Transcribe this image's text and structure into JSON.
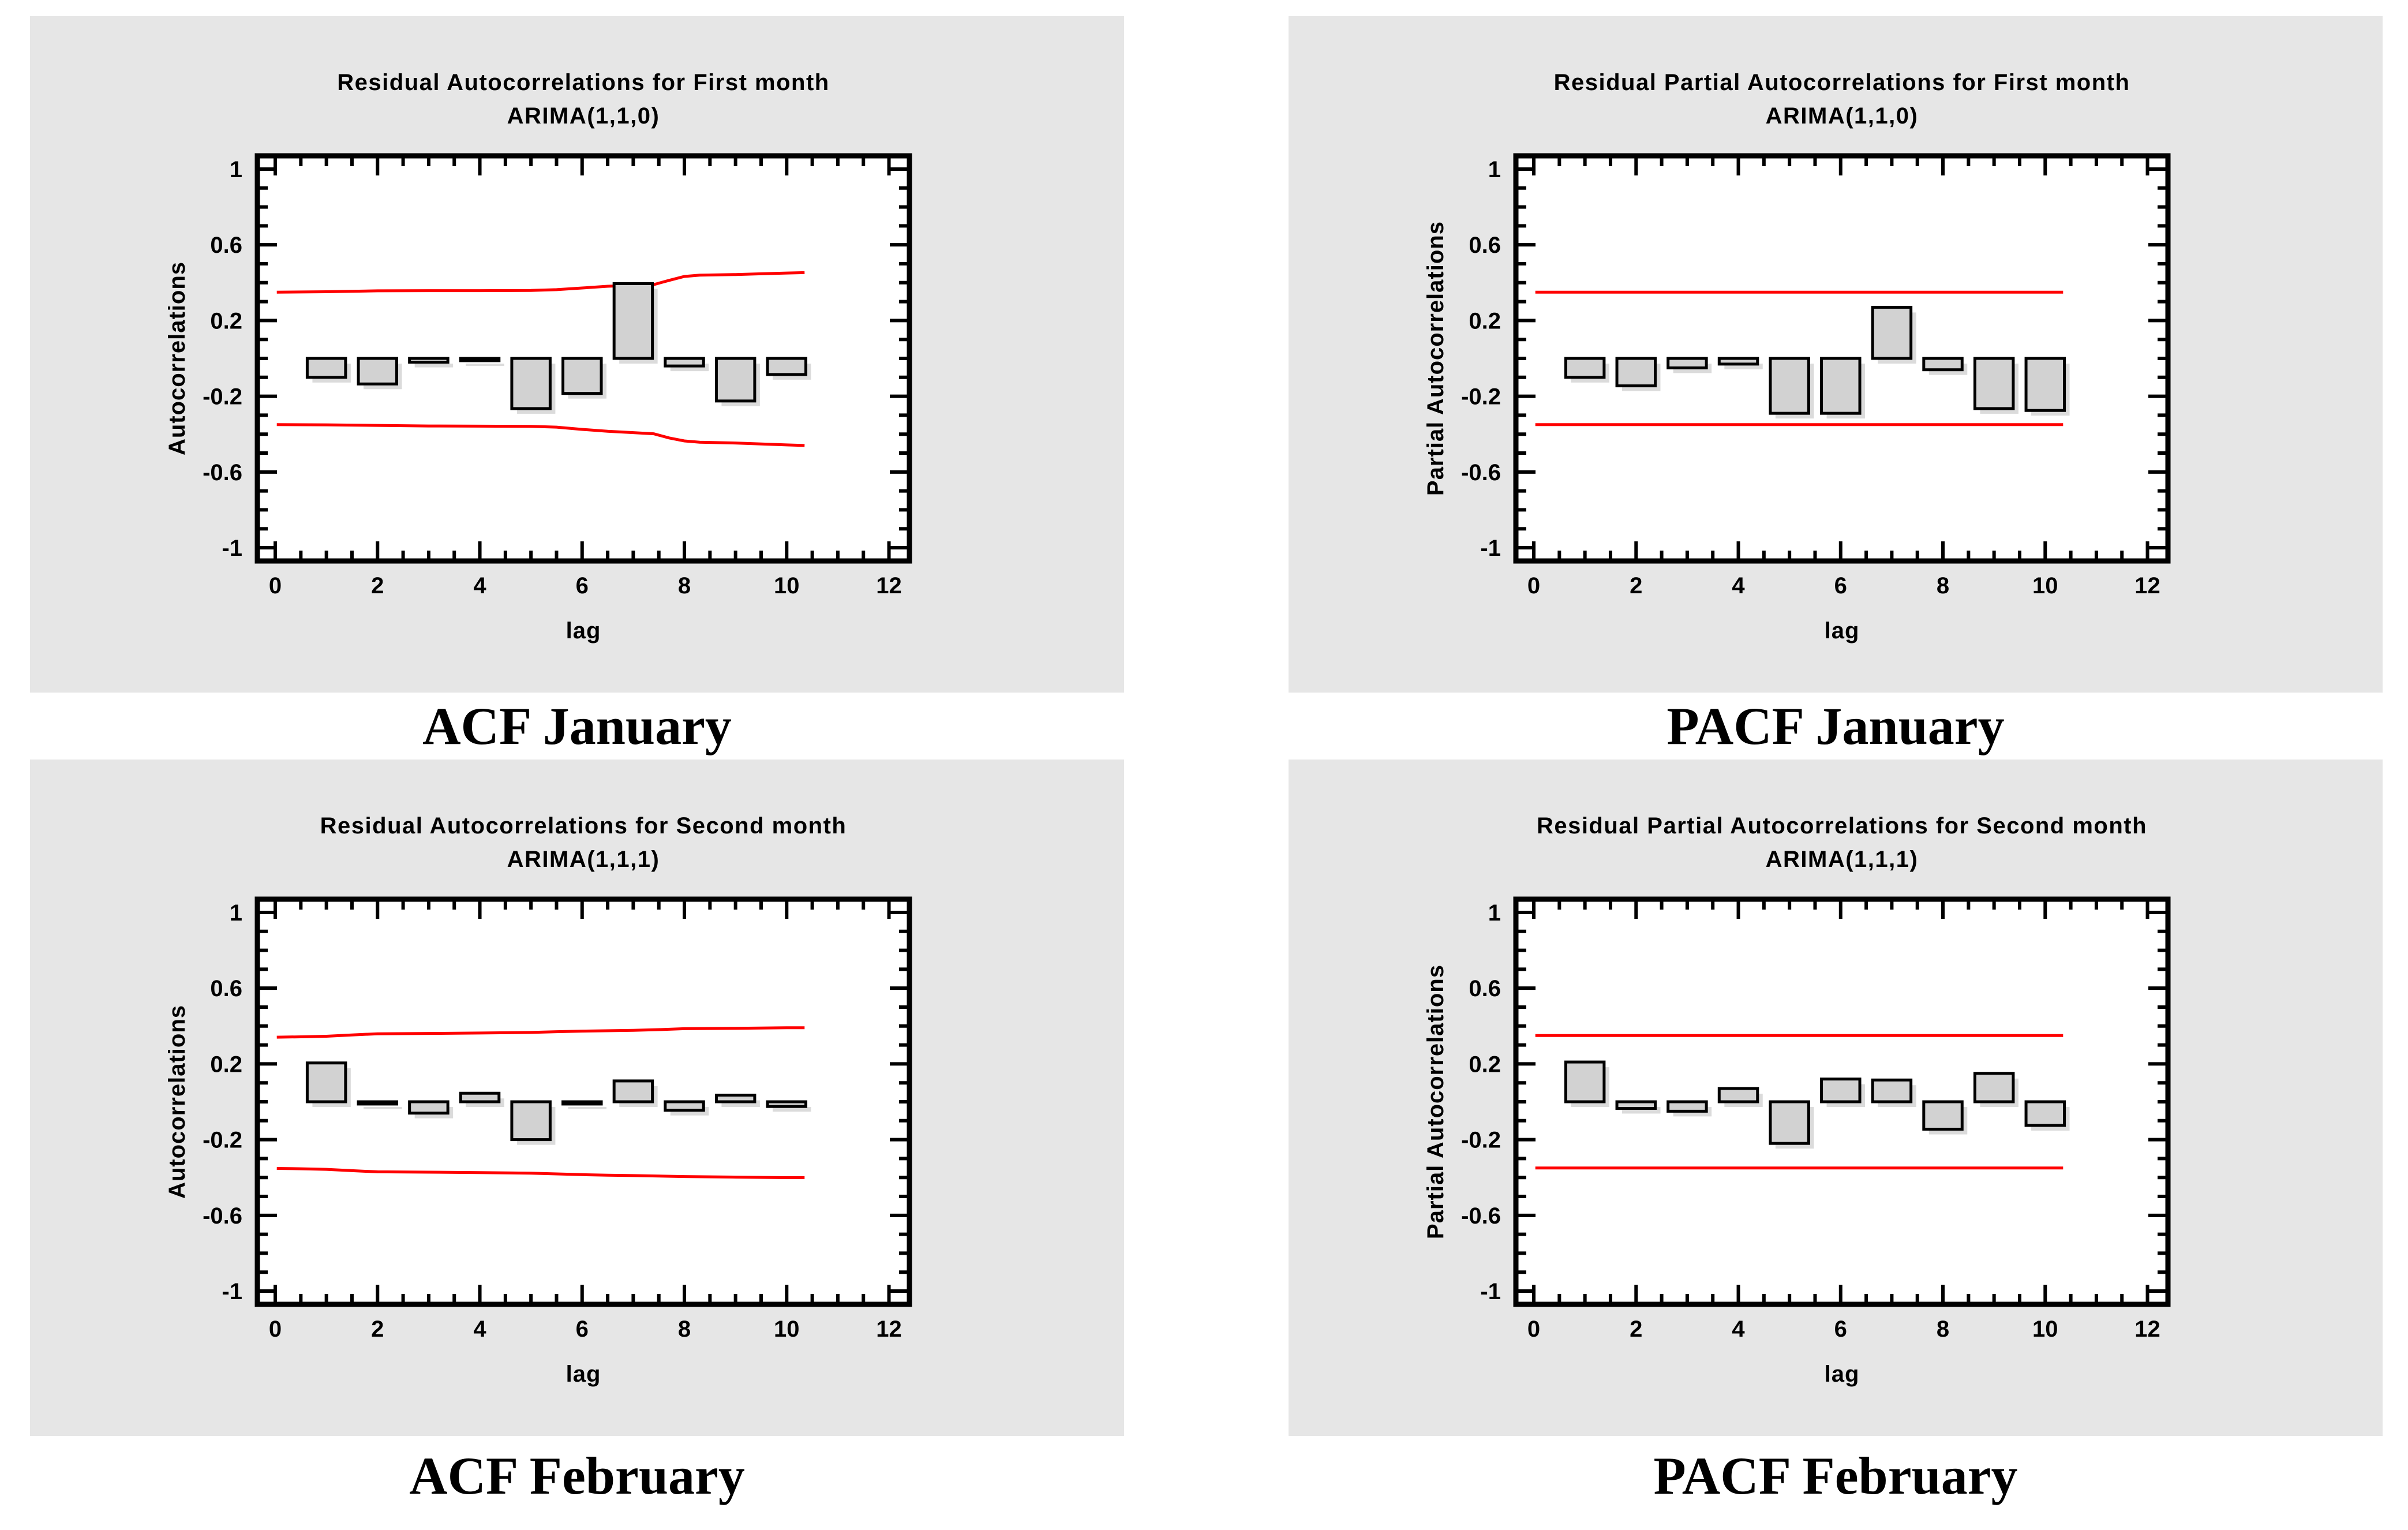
{
  "page": {
    "background": "#ffffff",
    "panel_background": "#e6e6e6"
  },
  "colors": {
    "bar_fill": "#d2d2d2",
    "bar_stroke": "#000000",
    "bar_shadow": "#dbdbdb",
    "confidence_band": "#ff0000",
    "axis": "#000000",
    "plot_background": "#ffffff"
  },
  "captions": {
    "acf_january": "ACF January",
    "pacf_january": "PACF January",
    "acf_february": "ACF February",
    "pacf_february": "PACF February"
  },
  "chart_data": {
    "type": "bar",
    "grid": "off",
    "legend": "none",
    "axes": {
      "xlim": [
        -0.35,
        12.4
      ],
      "ylim": [
        -1.07,
        1.07
      ],
      "x_major_ticks": [
        0,
        2,
        4,
        6,
        8,
        10,
        12
      ],
      "x_minor_step": 0.5,
      "y_major_ticks": [
        1,
        0.6,
        0.2,
        -0.2,
        -0.6,
        -1
      ],
      "y_minor_step": 0.1,
      "y_major_tick_labels": [
        "1",
        "0.6",
        "0.2",
        "-0.2",
        "-0.6",
        "-1"
      ],
      "x_major_tick_labels": [
        "0",
        "2",
        "4",
        "6",
        "8",
        "10",
        "12"
      ]
    },
    "charts": [
      {
        "id": "acf-january",
        "title_line1": "Residual Autocorrelations for First month",
        "title_line2": "ARIMA(1,1,0)",
        "ylabel": "Autocorrelations",
        "xlabel": "lag",
        "lags": [
          1,
          2,
          3,
          4,
          5,
          6,
          7,
          8,
          9,
          10
        ],
        "values": [
          -0.1,
          -0.135,
          -0.02,
          -0.012,
          -0.265,
          -0.185,
          0.395,
          -0.04,
          -0.225,
          -0.085
        ],
        "upper_band": [
          [
            0.03,
            0.35
          ],
          [
            1,
            0.352
          ],
          [
            2,
            0.357
          ],
          [
            3,
            0.358
          ],
          [
            4,
            0.358
          ],
          [
            5,
            0.359
          ],
          [
            5.5,
            0.363
          ],
          [
            6,
            0.372
          ],
          [
            6.5,
            0.381
          ],
          [
            7,
            0.386
          ],
          [
            7.4,
            0.39
          ],
          [
            7.7,
            0.412
          ],
          [
            8,
            0.433
          ],
          [
            8.3,
            0.44
          ],
          [
            9,
            0.443
          ],
          [
            9.5,
            0.447
          ],
          [
            10,
            0.451
          ],
          [
            10.35,
            0.453
          ]
        ],
        "lower_band": [
          [
            0.03,
            -0.35
          ],
          [
            1,
            -0.351
          ],
          [
            2,
            -0.354
          ],
          [
            3,
            -0.357
          ],
          [
            4,
            -0.358
          ],
          [
            5,
            -0.359
          ],
          [
            5.5,
            -0.363
          ],
          [
            6,
            -0.375
          ],
          [
            6.5,
            -0.385
          ],
          [
            7,
            -0.392
          ],
          [
            7.4,
            -0.398
          ],
          [
            7.7,
            -0.42
          ],
          [
            8,
            -0.436
          ],
          [
            8.3,
            -0.443
          ],
          [
            9,
            -0.447
          ],
          [
            9.5,
            -0.452
          ],
          [
            10,
            -0.457
          ],
          [
            10.35,
            -0.46
          ]
        ]
      },
      {
        "id": "pacf-january",
        "title_line1": "Residual Partial Autocorrelations for First month",
        "title_line2": "ARIMA(1,1,0)",
        "ylabel": "Partial Autocorrelations",
        "xlabel": "lag",
        "lags": [
          1,
          2,
          3,
          4,
          5,
          6,
          7,
          8,
          9,
          10
        ],
        "values": [
          -0.1,
          -0.145,
          -0.05,
          -0.03,
          -0.29,
          -0.29,
          0.27,
          -0.06,
          -0.265,
          -0.275
        ],
        "upper_band": [
          [
            0.03,
            0.35
          ],
          [
            10.35,
            0.35
          ]
        ],
        "lower_band": [
          [
            0.03,
            -0.35
          ],
          [
            10.35,
            -0.35
          ]
        ]
      },
      {
        "id": "acf-february",
        "title_line1": "Residual Autocorrelations for Second month",
        "title_line2": "ARIMA(1,1,1)",
        "ylabel": "Autocorrelations",
        "xlabel": "lag",
        "lags": [
          1,
          2,
          3,
          4,
          5,
          6,
          7,
          8,
          9,
          10
        ],
        "values": [
          0.205,
          -0.012,
          -0.06,
          0.045,
          -0.2,
          -0.012,
          0.11,
          -0.045,
          0.035,
          -0.025
        ],
        "upper_band": [
          [
            0.03,
            0.341
          ],
          [
            0.5,
            0.343
          ],
          [
            1,
            0.346
          ],
          [
            1.5,
            0.353
          ],
          [
            2,
            0.359
          ],
          [
            3,
            0.361
          ],
          [
            4,
            0.363
          ],
          [
            5,
            0.366
          ],
          [
            5.5,
            0.37
          ],
          [
            6,
            0.373
          ],
          [
            7,
            0.377
          ],
          [
            7.5,
            0.381
          ],
          [
            8,
            0.386
          ],
          [
            9,
            0.388
          ],
          [
            10,
            0.391
          ],
          [
            10.35,
            0.391
          ]
        ],
        "lower_band": [
          [
            0.03,
            -0.352
          ],
          [
            0.5,
            -0.354
          ],
          [
            1,
            -0.357
          ],
          [
            1.5,
            -0.364
          ],
          [
            2,
            -0.37
          ],
          [
            3,
            -0.372
          ],
          [
            4,
            -0.374
          ],
          [
            5,
            -0.377
          ],
          [
            5.5,
            -0.381
          ],
          [
            6,
            -0.385
          ],
          [
            6.5,
            -0.388
          ],
          [
            7,
            -0.39
          ],
          [
            8,
            -0.395
          ],
          [
            9,
            -0.398
          ],
          [
            10,
            -0.401
          ],
          [
            10.35,
            -0.401
          ]
        ]
      },
      {
        "id": "pacf-february",
        "title_line1": "Residual Partial Autocorrelations for Second month",
        "title_line2": "ARIMA(1,1,1)",
        "ylabel": "Partial Autocorrelations",
        "xlabel": "lag",
        "lags": [
          1,
          2,
          3,
          4,
          5,
          6,
          7,
          8,
          9,
          10
        ],
        "values": [
          0.21,
          -0.035,
          -0.05,
          0.07,
          -0.22,
          0.12,
          0.115,
          -0.145,
          0.15,
          -0.125
        ],
        "upper_band": [
          [
            0.03,
            0.35
          ],
          [
            10.35,
            0.35
          ]
        ],
        "lower_band": [
          [
            0.03,
            -0.35
          ],
          [
            10.35,
            -0.35
          ]
        ]
      }
    ]
  }
}
